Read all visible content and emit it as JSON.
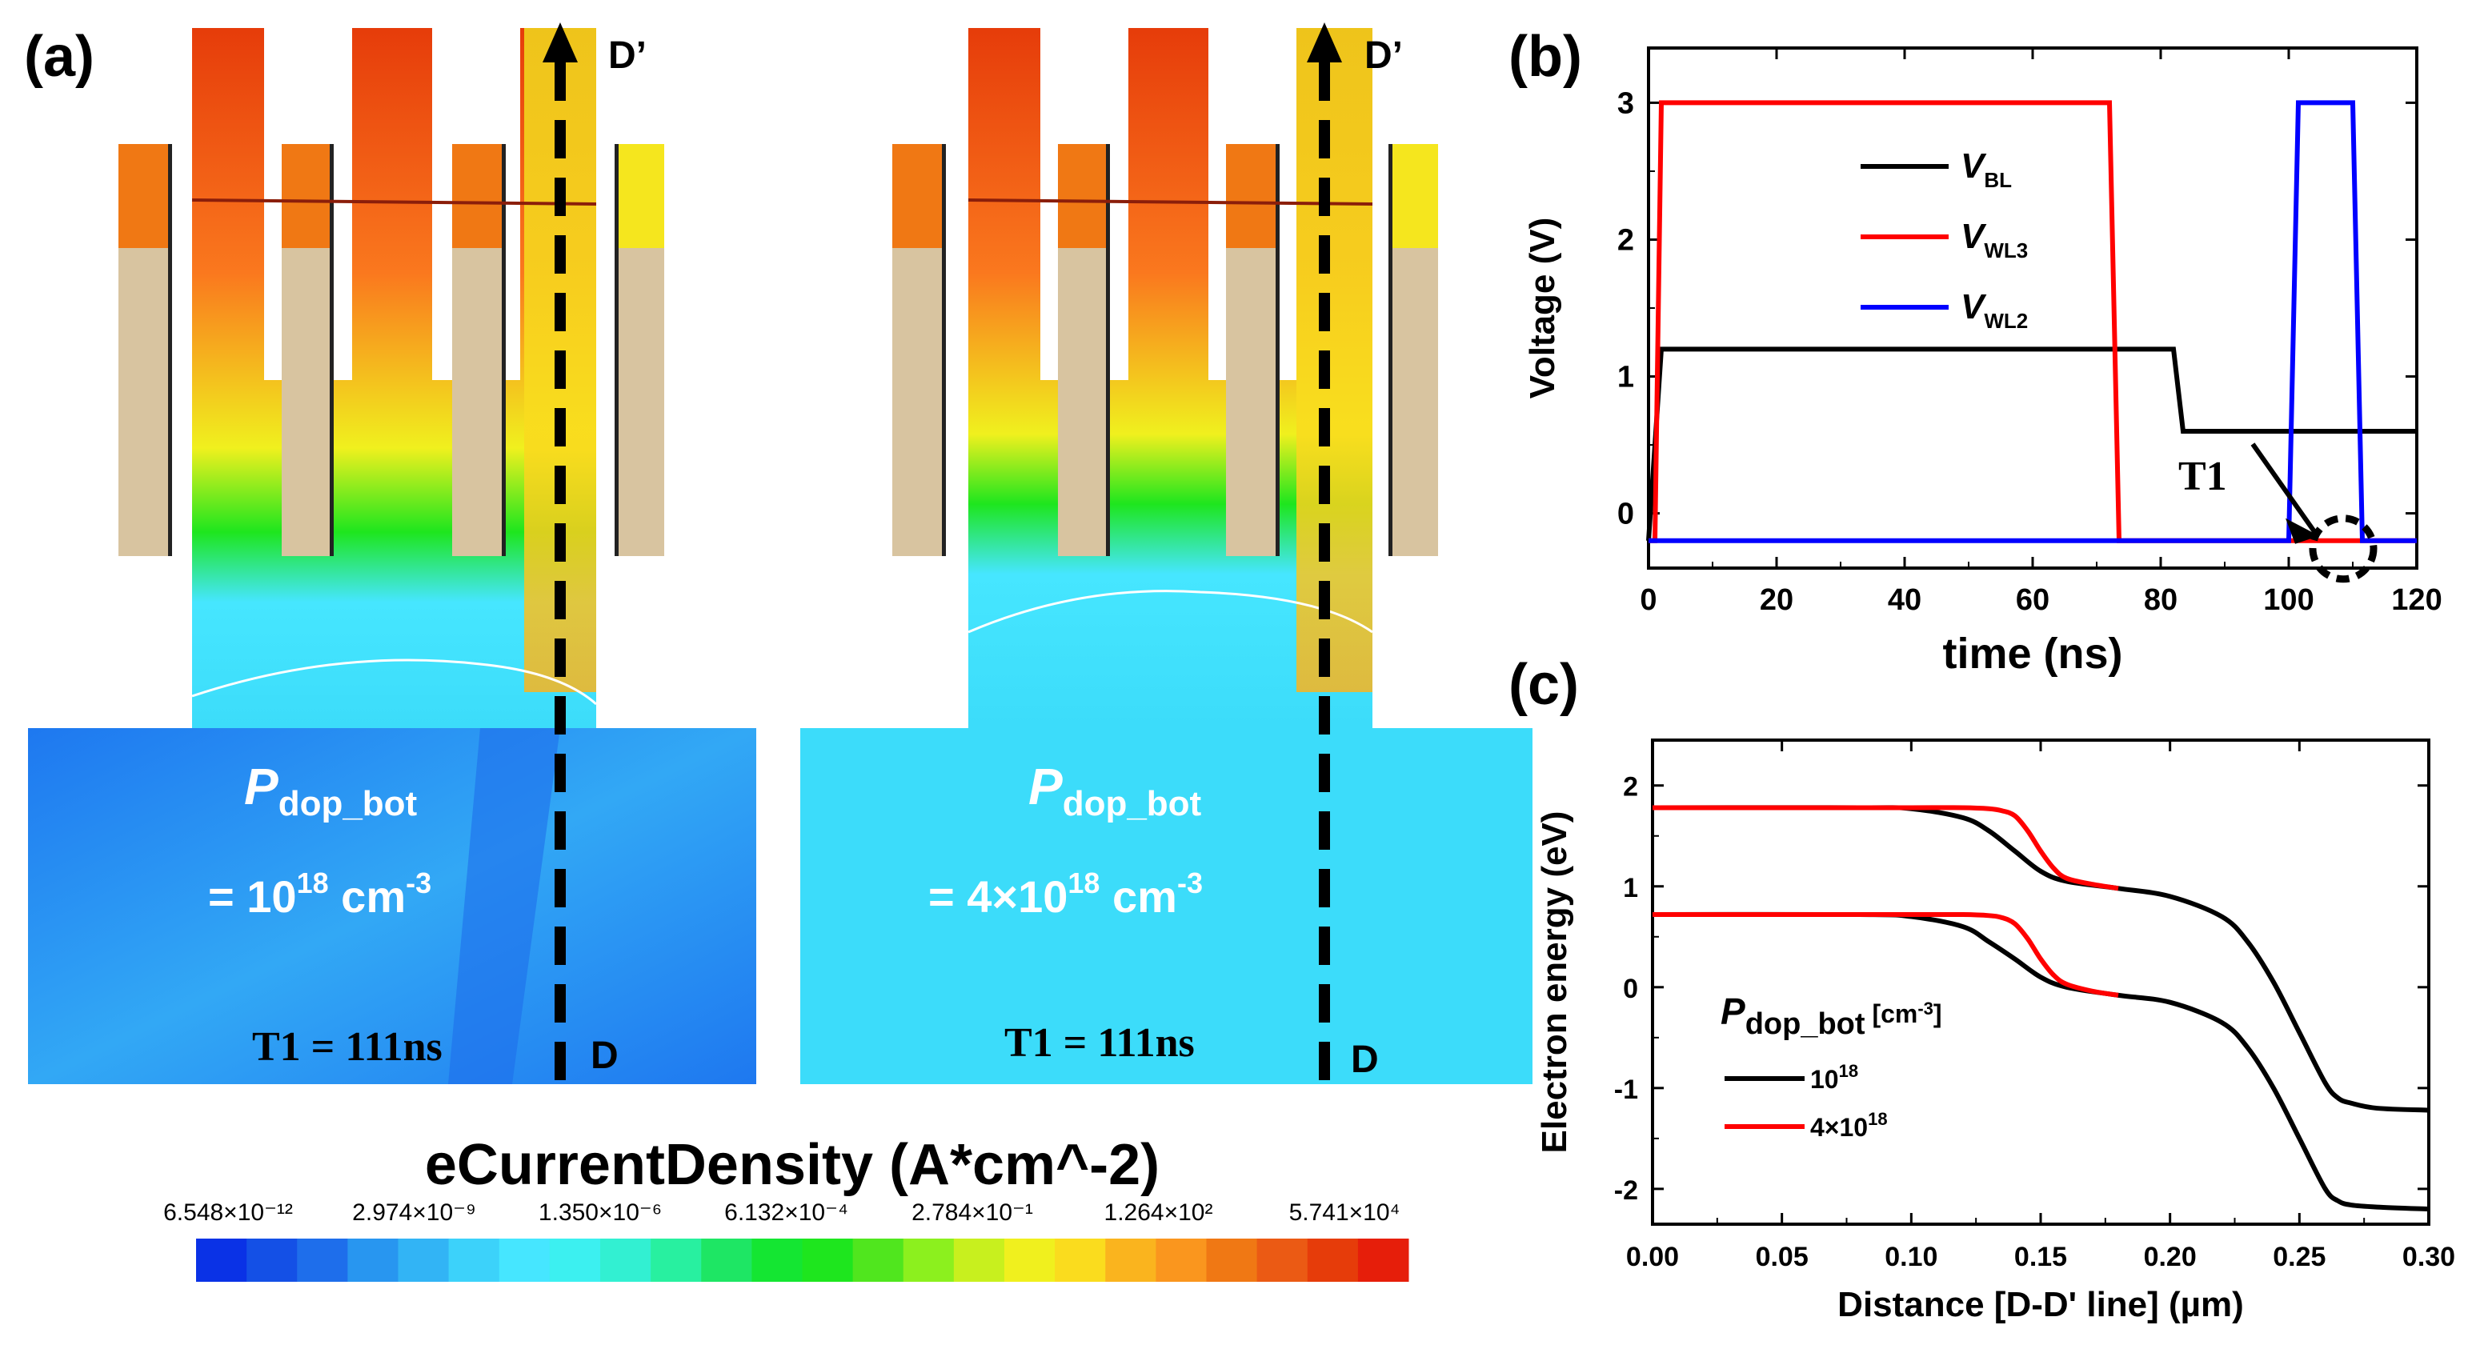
{
  "panels": {
    "a": "(a)",
    "b": "(b)",
    "c": "(c)"
  },
  "sim": {
    "left": {
      "p_label": "P",
      "p_sub": "dop_bot",
      "eq": "= 10",
      "exp": "18",
      "unit": " cm",
      "unit_exp": "-3",
      "t1": "T1 = 111ns",
      "d_top": "D’",
      "d_bot": "D"
    },
    "right": {
      "p_label": "P",
      "p_sub": "dop_bot",
      "eq": "= 4×10",
      "exp": "18",
      "unit": " cm",
      "unit_exp": "-3",
      "t1": "T1 = 111ns",
      "d_top": "D’",
      "d_bot": "D"
    }
  },
  "colorbar": {
    "title": "eCurrentDensity (A*cm^-2)",
    "ticks": [
      "6.548×10⁻¹²",
      "2.974×10⁻⁹",
      "1.350×10⁻⁶",
      "6.132×10⁻⁴",
      "2.784×10⁻¹",
      "1.264×10²",
      "5.741×10⁴"
    ],
    "colors": [
      "#0a32e6",
      "#1450e6",
      "#1e6eeb",
      "#2896f0",
      "#32b4f5",
      "#3cd2fa",
      "#46e6ff",
      "#3cf0f0",
      "#32f0d2",
      "#28f0a0",
      "#1ee664",
      "#14e632",
      "#1ee61e",
      "#50e61e",
      "#8cf01e",
      "#c8f01e",
      "#f0f01e",
      "#fadc1e",
      "#fab41e",
      "#fa961e",
      "#f07814",
      "#eb5a14",
      "#e63c0a",
      "#e61e0a"
    ]
  },
  "chart_data": [
    {
      "type": "line",
      "panel": "b",
      "xlabel": "time (ns)",
      "ylabel": "Voltage (V)",
      "xlim": [
        0,
        120
      ],
      "ylim": [
        -0.4,
        3.4
      ],
      "xticks": [
        "0",
        "20",
        "40",
        "60",
        "80",
        "100",
        "120"
      ],
      "yticks": [
        "0",
        "1",
        "2",
        "3"
      ],
      "annotation": "T1",
      "series": [
        {
          "name": "V",
          "sub": "BL",
          "color": "#000000",
          "x": [
            0,
            2,
            82,
            83.5,
            120
          ],
          "y": [
            -0.2,
            1.2,
            1.2,
            0.6,
            0.6
          ]
        },
        {
          "name": "V",
          "sub": "WL3",
          "color": "#ff0000",
          "x": [
            0,
            1,
            2,
            72,
            73.5,
            120
          ],
          "y": [
            -0.2,
            -0.2,
            3.0,
            3.0,
            -0.2,
            -0.2
          ]
        },
        {
          "name": "V",
          "sub": "WL2",
          "color": "#0000ff",
          "x": [
            0,
            100,
            101.5,
            110,
            111.5,
            120
          ],
          "y": [
            -0.2,
            -0.2,
            3.0,
            3.0,
            -0.2,
            -0.2
          ]
        }
      ]
    },
    {
      "type": "line",
      "panel": "c",
      "xlabel": "Distance [D-D' line] (µm)",
      "ylabel": "Electron energy (eV)",
      "xlim": [
        0,
        0.3
      ],
      "ylim": [
        -2.35,
        2.45
      ],
      "xticks": [
        "0.00",
        "0.05",
        "0.10",
        "0.15",
        "0.20",
        "0.25",
        "0.30"
      ],
      "yticks": [
        "-2",
        "-1",
        "0",
        "1",
        "2"
      ],
      "legend_title": "P",
      "legend_title_sub": "dop_bot",
      "legend_title_unit": " [cm",
      "legend_title_unit_exp": "-3",
      "legend_title_unit_end": "]",
      "series": [
        {
          "name": "10",
          "exp": "18",
          "color": "#000000",
          "curves": [
            {
              "x": [
                0,
                0.08,
                0.1,
                0.12,
                0.13,
                0.14,
                0.15,
                0.16,
                0.18,
                0.2,
                0.22,
                0.23,
                0.24,
                0.25,
                0.26,
                0.265,
                0.27,
                0.28,
                0.3
              ],
              "y": [
                1.78,
                1.78,
                1.77,
                1.68,
                1.55,
                1.35,
                1.15,
                1.05,
                0.98,
                0.9,
                0.7,
                0.45,
                0.05,
                -0.45,
                -0.95,
                -1.1,
                -1.15,
                -1.2,
                -1.22
              ]
            },
            {
              "x": [
                0,
                0.08,
                0.1,
                0.12,
                0.13,
                0.14,
                0.15,
                0.16,
                0.18,
                0.2,
                0.22,
                0.23,
                0.24,
                0.25,
                0.26,
                0.265,
                0.27,
                0.28,
                0.3
              ],
              "y": [
                0.72,
                0.72,
                0.7,
                0.6,
                0.45,
                0.28,
                0.1,
                0.0,
                -0.08,
                -0.15,
                -0.35,
                -0.6,
                -1.0,
                -1.5,
                -2.0,
                -2.12,
                -2.16,
                -2.18,
                -2.2
              ]
            }
          ]
        },
        {
          "name": "4×10",
          "exp": "18",
          "color": "#ff0000",
          "curves": [
            {
              "x": [
                0,
                0.1,
                0.12,
                0.13,
                0.135,
                0.14,
                0.145,
                0.15,
                0.155,
                0.16,
                0.17,
                0.18
              ],
              "y": [
                1.78,
                1.78,
                1.78,
                1.77,
                1.75,
                1.7,
                1.55,
                1.35,
                1.18,
                1.08,
                1.02,
                0.98
              ]
            },
            {
              "x": [
                0,
                0.1,
                0.12,
                0.13,
                0.135,
                0.14,
                0.145,
                0.15,
                0.155,
                0.16,
                0.17,
                0.18
              ],
              "y": [
                0.72,
                0.72,
                0.72,
                0.71,
                0.69,
                0.63,
                0.48,
                0.28,
                0.12,
                0.03,
                -0.04,
                -0.08
              ]
            }
          ]
        }
      ]
    }
  ]
}
